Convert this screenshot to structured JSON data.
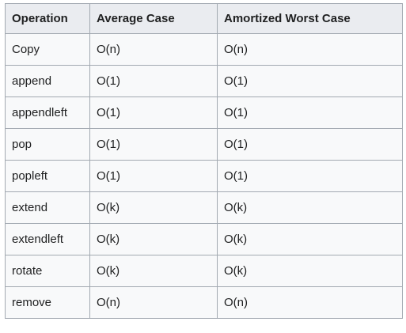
{
  "table": {
    "headers": [
      "Operation",
      "Average Case",
      "Amortized Worst Case"
    ],
    "rows": [
      [
        "Copy",
        "O(n)",
        "O(n)"
      ],
      [
        "append",
        "O(1)",
        "O(1)"
      ],
      [
        "appendleft",
        "O(1)",
        "O(1)"
      ],
      [
        "pop",
        "O(1)",
        "O(1)"
      ],
      [
        "popleft",
        "O(1)",
        "O(1)"
      ],
      [
        "extend",
        "O(k)",
        "O(k)"
      ],
      [
        "extendleft",
        "O(k)",
        "O(k)"
      ],
      [
        "rotate",
        "O(k)",
        "O(k)"
      ],
      [
        "remove",
        "O(n)",
        "O(n)"
      ]
    ]
  }
}
